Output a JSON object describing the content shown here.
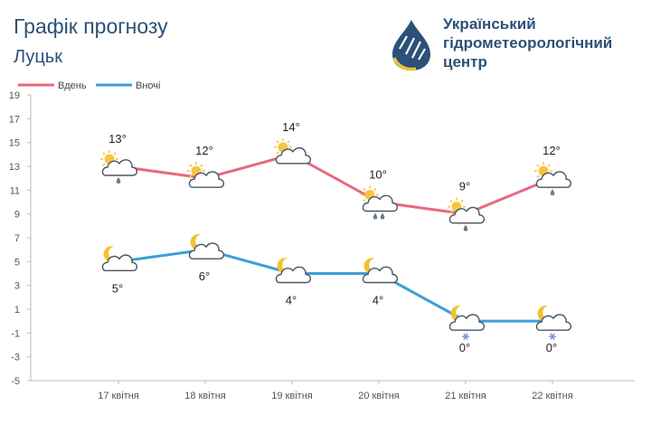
{
  "header": {
    "title": "Графік прогнозу",
    "city": "Луцьк",
    "org_line1": "Український",
    "org_line2": "гідрометеорологічний",
    "org_line3": "центр"
  },
  "colors": {
    "day": "#e8687e",
    "night": "#3e9fd6",
    "brand": "#2b5178",
    "sun": "#f5c542",
    "moon": "#f2c230",
    "drop": "#6f7b87",
    "snow": "#6a8fc9"
  },
  "chart_data": {
    "type": "line",
    "categories": [
      "17 квітня",
      "18 квітня",
      "19 квітня",
      "20 квітня",
      "21 квітня",
      "22 квітня"
    ],
    "ylim": [
      -5,
      19
    ],
    "yticks": [
      -5,
      -3,
      -1,
      1,
      3,
      5,
      7,
      9,
      11,
      13,
      15,
      17,
      19
    ],
    "legend_position": "top-left",
    "grid": false,
    "series": [
      {
        "name": "Вдень",
        "values": [
          13,
          12,
          14,
          10,
          9,
          12
        ],
        "labels": [
          "13°",
          "12°",
          "14°",
          "10°",
          "9°",
          "12°"
        ],
        "icons": [
          "sun-cloud-rain",
          "sun-cloud",
          "sun-cloud",
          "sun-cloud-rain-heavy",
          "sun-cloud-rain",
          "sun-cloud-rain"
        ]
      },
      {
        "name": "Вночі",
        "values": [
          5,
          6,
          4,
          4,
          0,
          0
        ],
        "labels": [
          "5°",
          "6°",
          "4°",
          "4°",
          "0°",
          "0°"
        ],
        "icons": [
          "moon-cloud",
          "moon-cloud",
          "moon-cloud",
          "moon-cloud",
          "moon-cloud-snow",
          "moon-cloud-snow"
        ]
      }
    ]
  }
}
